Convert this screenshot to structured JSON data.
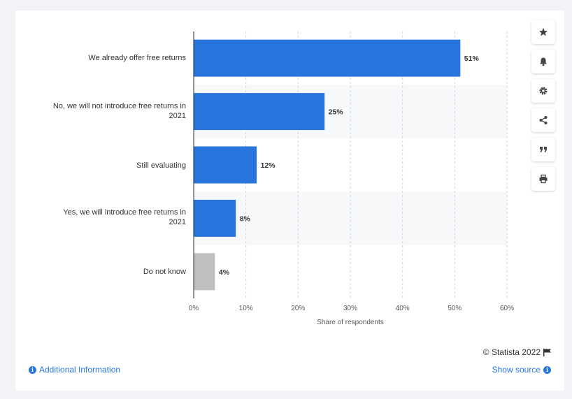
{
  "chart_data": {
    "type": "bar",
    "orientation": "horizontal",
    "categories": [
      "We already offer free returns",
      "No, we will not introduce free returns in 2021",
      "Still evaluating",
      "Yes, we will introduce free returns in 2021",
      "Do not know"
    ],
    "values": [
      51,
      25,
      12,
      8,
      4
    ],
    "value_labels": [
      "51%",
      "25%",
      "12%",
      "8%",
      "4%"
    ],
    "bar_colors": [
      "#2876dd",
      "#2876dd",
      "#2876dd",
      "#2876dd",
      "#bfbfbf"
    ],
    "xlabel": "Share of respondents",
    "xlim": [
      0,
      60
    ],
    "x_ticks": [
      0,
      10,
      20,
      30,
      40,
      50,
      60
    ],
    "x_tick_labels": [
      "0%",
      "10%",
      "20%",
      "30%",
      "40%",
      "50%",
      "60%"
    ],
    "grid": true
  },
  "labels": {
    "cat0": "We already offer free returns",
    "cat1a": "No, we will not introduce free returns in",
    "cat1b": "2021",
    "cat2": "Still evaluating",
    "cat3a": "Yes, we will introduce free returns in",
    "cat3b": "2021",
    "cat4": "Do not know"
  },
  "toolbar": {
    "buttons": [
      "star-icon",
      "bell-icon",
      "gear-icon",
      "share-icon",
      "quote-icon",
      "print-icon"
    ]
  },
  "footer": {
    "credit": "© Statista 2022",
    "additional_info": "Additional Information",
    "show_source": "Show source"
  },
  "colors": {
    "accent": "#2876dd",
    "bar_grey": "#bfbfbf",
    "band": "#f7f8fa"
  }
}
